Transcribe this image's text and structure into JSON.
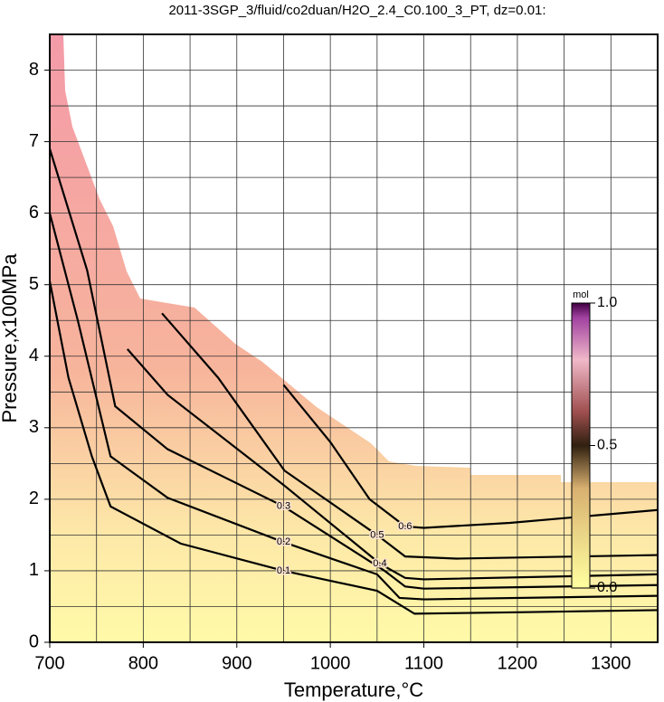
{
  "chart_data": {
    "type": "contour",
    "title": "2011-3SGP_3/fluid/co2duan/H2O_2.4_C0.100_3_PT, dz=0.01:",
    "x_label": "Temperature,°C",
    "y_label": "Pressure,x100MPa",
    "xlim": [
      700,
      1350
    ],
    "ylim": [
      0,
      8.5
    ],
    "xticks": [
      700,
      800,
      900,
      1000,
      1100,
      1200,
      1300
    ],
    "yticks": [
      0,
      1,
      2,
      3,
      4,
      5,
      6,
      7,
      8
    ],
    "xminor": [
      750,
      850,
      950,
      1050,
      1150,
      1250
    ],
    "yminor": [
      0.5,
      1.5,
      2.5,
      3.5,
      4.5,
      5.5,
      6.5,
      7.5
    ],
    "grid": true,
    "contours": [
      {
        "level": 0.1,
        "x": [
          700,
          720,
          745,
          765,
          840,
          950,
          1050,
          1090,
          1200,
          1350
        ],
        "values": [
          5.05,
          3.7,
          2.6,
          1.9,
          1.38,
          1.0,
          0.72,
          0.4,
          0.42,
          0.45
        ]
      },
      {
        "level": 0.2,
        "x": [
          700,
          730,
          765,
          826,
          950,
          1050,
          1074,
          1100,
          1350
        ],
        "values": [
          6.0,
          4.5,
          2.6,
          2.02,
          1.4,
          0.95,
          0.62,
          0.6,
          0.65
        ]
      },
      {
        "level": 0.3,
        "x": [
          700,
          740,
          770,
          826,
          950,
          1058,
          1080,
          1100,
          1350
        ],
        "values": [
          6.9,
          5.2,
          3.3,
          2.7,
          1.9,
          1.0,
          0.78,
          0.75,
          0.8
        ]
      },
      {
        "level": 0.4,
        "x": [
          783,
          826,
          950,
          1053,
          1080,
          1100,
          1350
        ],
        "values": [
          4.1,
          3.46,
          2.2,
          1.1,
          0.9,
          0.88,
          0.95
        ]
      },
      {
        "level": 0.5,
        "x": [
          820,
          880,
          951,
          1050,
          1080,
          1135,
          1350
        ],
        "values": [
          4.6,
          3.7,
          2.4,
          1.5,
          1.2,
          1.17,
          1.22
        ]
      },
      {
        "level": 0.6,
        "x": [
          950,
          1000,
          1042,
          1080,
          1100,
          1192,
          1350
        ],
        "values": [
          3.6,
          2.8,
          2.0,
          1.62,
          1.6,
          1.67,
          1.85
        ]
      }
    ],
    "colorbar": {
      "label": "mol",
      "lim": [
        0,
        1
      ],
      "ticks": [
        {
          "value": 0,
          "label": "0.0"
        },
        {
          "value": 0.5,
          "label": "0.5"
        },
        {
          "value": 1,
          "label": "1.0"
        }
      ]
    }
  }
}
